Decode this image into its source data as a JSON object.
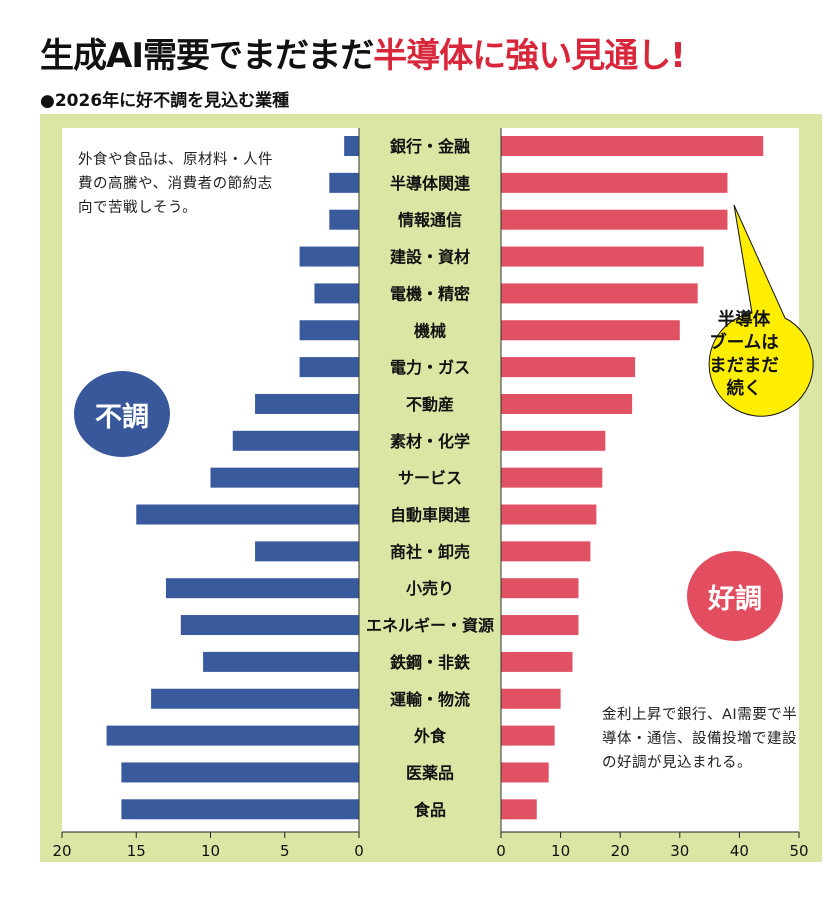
{
  "title_part1": "生成AI需要でまだまだ",
  "title_part2": "半導体に強い見通し!",
  "subtitle": "●2026年に好不調を見込む業種",
  "note_left": "外食や食品は、原材料・人件費の高騰や、消費者の節約志向で苦戦しそう。",
  "note_right": "金利上昇で銀行、AI需要で半導体・通信、設備投増で建設の好調が見込まれる。",
  "badge_bad": "不調",
  "badge_good": "好調",
  "callout": "半導体\nブームは\nまだまだ\n続く",
  "colors": {
    "background_panel": "#d9e6a4",
    "bad_bar": "#3a5a9e",
    "good_bar": "#e05163",
    "title_accent": "#d8263a",
    "callout_fill": "#ffee00"
  },
  "chart_data": {
    "type": "bar",
    "orientation": "horizontal",
    "categories": [
      "銀行・金融",
      "半導体関連",
      "情報通信",
      "建設・資材",
      "電機・精密",
      "機械",
      "電力・ガス",
      "不動産",
      "素材・化学",
      "サービス",
      "自動車関連",
      "商社・卸売",
      "小売り",
      "エネルギー・資源",
      "鉄鋼・非鉄",
      "運輸・物流",
      "外食",
      "医薬品",
      "食品"
    ],
    "series": [
      {
        "name": "不調",
        "values": [
          1,
          2,
          2,
          4,
          3,
          4,
          4,
          7,
          8.5,
          10,
          15,
          7,
          13,
          12,
          10.5,
          14,
          17,
          16,
          16
        ],
        "xlim": [
          0,
          20
        ],
        "direction": "left",
        "ticks": [
          20,
          15,
          10,
          5,
          0
        ]
      },
      {
        "name": "好調",
        "values": [
          44,
          38,
          38,
          34,
          33,
          30,
          22.5,
          22,
          17.5,
          17,
          16,
          15,
          13,
          13,
          12,
          10,
          9,
          8,
          6
        ],
        "xlim": [
          0,
          50
        ],
        "direction": "right",
        "ticks": [
          0,
          10,
          20,
          30,
          40,
          50
        ]
      }
    ]
  }
}
